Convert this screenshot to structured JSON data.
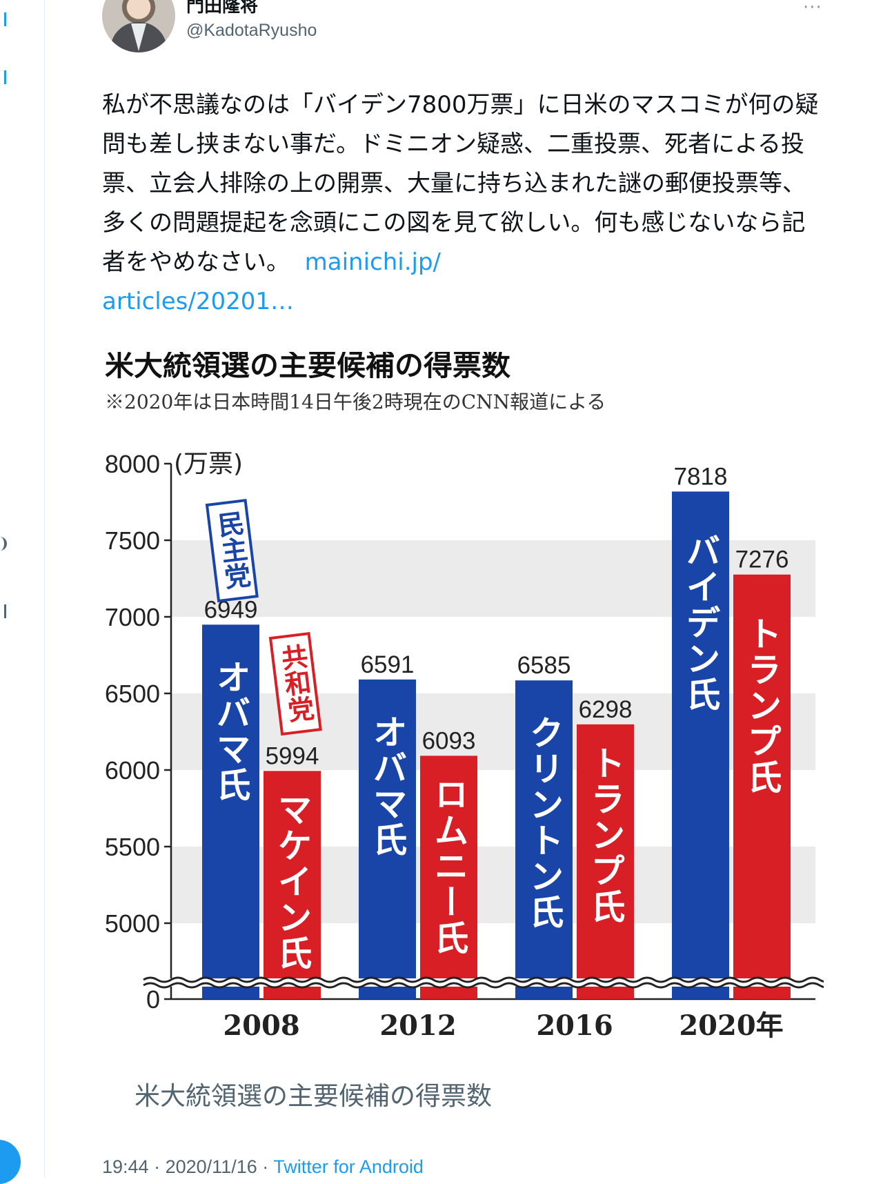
{
  "tweet": {
    "display_name": "門田隆将",
    "handle": "@KadotaRyusho",
    "more_label": "···",
    "text": "私が不思議なのは「バイデン7800万票」に日米のマスコミが何の疑問も差し挟まない事だ。ドミニオン疑惑、二重投票、死者による投票、立会人排除の上の開票、大量に持ち込まれた謎の郵便投票等、多くの問題提起を念頭にこの図を見て欲しい。何も感じないなら記者をやめなさい。",
    "link_line1": "mainichi.jp/",
    "link_line2": "articles/20201…",
    "media_caption": "米大統領選の主要候補の得票数",
    "time": "19:44",
    "date": "2020/11/16",
    "separator": "·",
    "source": "Twitter for Android"
  },
  "chart_data": {
    "type": "bar",
    "title": "米大統領選の主要候補の得票数",
    "subtitle": "※2020年は日本時間14日午後2時現在のCNN報道による",
    "unit_label": "(万票)",
    "categories": [
      "2008",
      "2012",
      "2016",
      "2020年"
    ],
    "y_ticks": [
      "8000",
      "7500",
      "7000",
      "6500",
      "6000",
      "5500",
      "5000",
      "0"
    ],
    "ylim": [
      5000,
      8000
    ],
    "axis_break": true,
    "party_labels": {
      "dem": "民主党",
      "rep": "共和党"
    },
    "colors": {
      "dem": "#1a45a8",
      "rep": "#d81f26",
      "band": "#ebebeb"
    },
    "series": [
      {
        "party": "dem",
        "values": [
          6949,
          6591,
          6585,
          7818
        ],
        "labels": [
          "6949",
          "6591",
          "6585",
          "7818"
        ],
        "candidates": [
          "オバマ氏",
          "オバマ氏",
          "クリントン氏",
          "バイデン氏"
        ]
      },
      {
        "party": "rep",
        "values": [
          5994,
          6093,
          6298,
          7276
        ],
        "labels": [
          "5994",
          "6093",
          "6298",
          "7276"
        ],
        "candidates": [
          "マケイン氏",
          "ロムニー氏",
          "トランプ氏",
          "トランプ氏"
        ]
      }
    ]
  }
}
